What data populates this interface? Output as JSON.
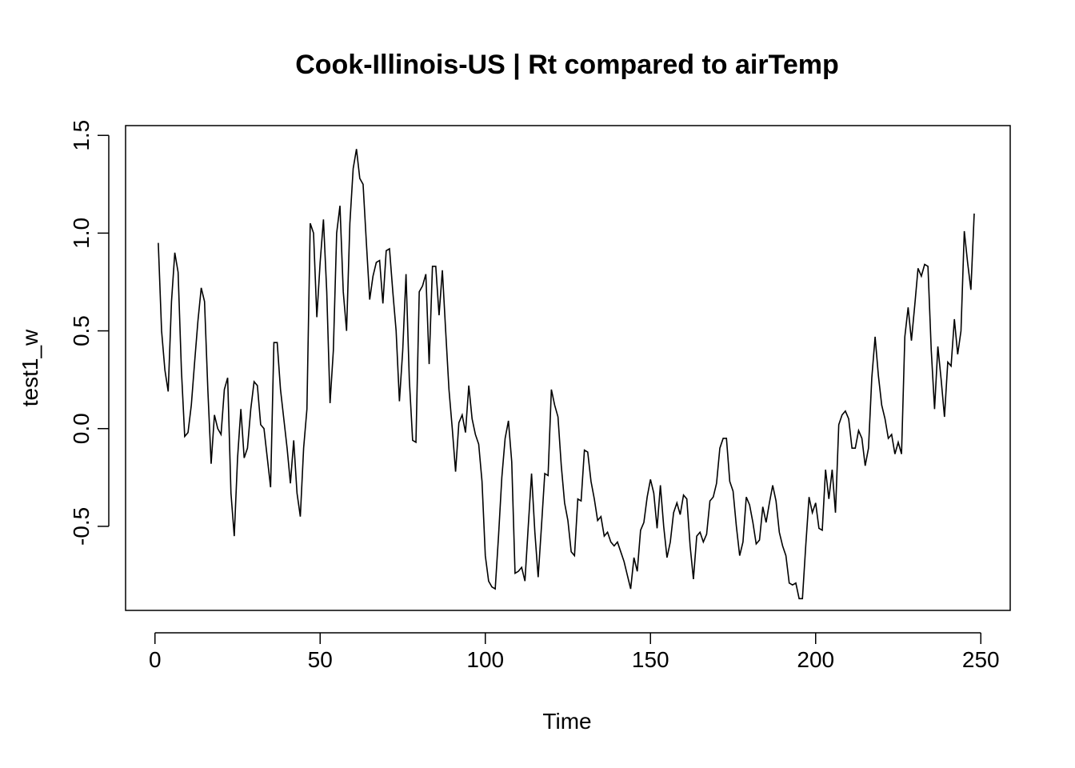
{
  "chart_data": {
    "type": "line",
    "title": "Cook-Illinois-US | Rt compared to airTemp",
    "xlabel": "Time",
    "ylabel": "test1_w",
    "xlim": [
      -8.9,
      258.9
    ],
    "ylim": [
      -0.93,
      1.55
    ],
    "x_ticks": [
      0,
      50,
      100,
      150,
      200,
      250
    ],
    "x_tick_labels": [
      "0",
      "50",
      "100",
      "150",
      "200",
      "250"
    ],
    "y_ticks": [
      -0.5,
      0.0,
      0.5,
      1.0,
      1.5
    ],
    "y_tick_labels": [
      "-0.5",
      "0.0",
      "0.5",
      "1.0",
      "1.5"
    ],
    "grid": false,
    "legend": "none",
    "series": [
      {
        "x_start": 1,
        "x_step": 1,
        "values": [
          0.95,
          0.5,
          0.3,
          0.19,
          0.65,
          0.9,
          0.8,
          0.3,
          -0.04,
          -0.02,
          0.12,
          0.34,
          0.55,
          0.72,
          0.65,
          0.2,
          -0.18,
          0.07,
          0.0,
          -0.03,
          0.2,
          0.26,
          -0.33,
          -0.55,
          -0.15,
          0.1,
          -0.15,
          -0.1,
          0.1,
          0.24,
          0.22,
          0.02,
          0.0,
          -0.15,
          -0.3,
          0.44,
          0.44,
          0.2,
          0.05,
          -0.1,
          -0.28,
          -0.06,
          -0.33,
          -0.45,
          -0.1,
          0.1,
          1.05,
          1.0,
          0.57,
          0.85,
          1.07,
          0.7,
          0.13,
          0.4,
          1.0,
          1.14,
          0.7,
          0.5,
          1.05,
          1.33,
          1.43,
          1.28,
          1.25,
          0.95,
          0.66,
          0.78,
          0.85,
          0.86,
          0.64,
          0.91,
          0.92,
          0.7,
          0.5,
          0.14,
          0.4,
          0.79,
          0.25,
          -0.06,
          -0.07,
          0.7,
          0.73,
          0.79,
          0.33,
          0.83,
          0.83,
          0.58,
          0.81,
          0.5,
          0.2,
          0.0,
          -0.22,
          0.03,
          0.07,
          -0.02,
          0.22,
          0.05,
          -0.03,
          -0.08,
          -0.27,
          -0.65,
          -0.78,
          -0.81,
          -0.82,
          -0.55,
          -0.25,
          -0.05,
          0.04,
          -0.17,
          -0.74,
          -0.73,
          -0.71,
          -0.78,
          -0.5,
          -0.23,
          -0.53,
          -0.76,
          -0.5,
          -0.23,
          -0.24,
          0.2,
          0.12,
          0.06,
          -0.19,
          -0.38,
          -0.47,
          -0.63,
          -0.65,
          -0.36,
          -0.37,
          -0.11,
          -0.12,
          -0.27,
          -0.36,
          -0.47,
          -0.45,
          -0.55,
          -0.53,
          -0.58,
          -0.6,
          -0.58,
          -0.63,
          -0.68,
          -0.75,
          -0.82,
          -0.66,
          -0.73,
          -0.52,
          -0.48,
          -0.35,
          -0.26,
          -0.33,
          -0.51,
          -0.29,
          -0.5,
          -0.66,
          -0.58,
          -0.43,
          -0.38,
          -0.44,
          -0.34,
          -0.36,
          -0.6,
          -0.77,
          -0.55,
          -0.53,
          -0.58,
          -0.54,
          -0.37,
          -0.35,
          -0.28,
          -0.1,
          -0.05,
          -0.05,
          -0.27,
          -0.32,
          -0.5,
          -0.65,
          -0.58,
          -0.35,
          -0.39,
          -0.48,
          -0.59,
          -0.57,
          -0.4,
          -0.48,
          -0.38,
          -0.29,
          -0.37,
          -0.53,
          -0.6,
          -0.65,
          -0.79,
          -0.8,
          -0.79,
          -0.87,
          -0.87,
          -0.6,
          -0.35,
          -0.43,
          -0.38,
          -0.51,
          -0.52,
          -0.21,
          -0.36,
          -0.21,
          -0.43,
          0.02,
          0.07,
          0.09,
          0.05,
          -0.1,
          -0.1,
          -0.01,
          -0.05,
          -0.19,
          -0.1,
          0.26,
          0.47,
          0.27,
          0.12,
          0.05,
          -0.05,
          -0.03,
          -0.13,
          -0.07,
          -0.13,
          0.47,
          0.62,
          0.45,
          0.63,
          0.82,
          0.78,
          0.84,
          0.83,
          0.4,
          0.1,
          0.42,
          0.25,
          0.06,
          0.34,
          0.32,
          0.56,
          0.38,
          0.5,
          1.01,
          0.85,
          0.71,
          1.1
        ]
      }
    ]
  }
}
